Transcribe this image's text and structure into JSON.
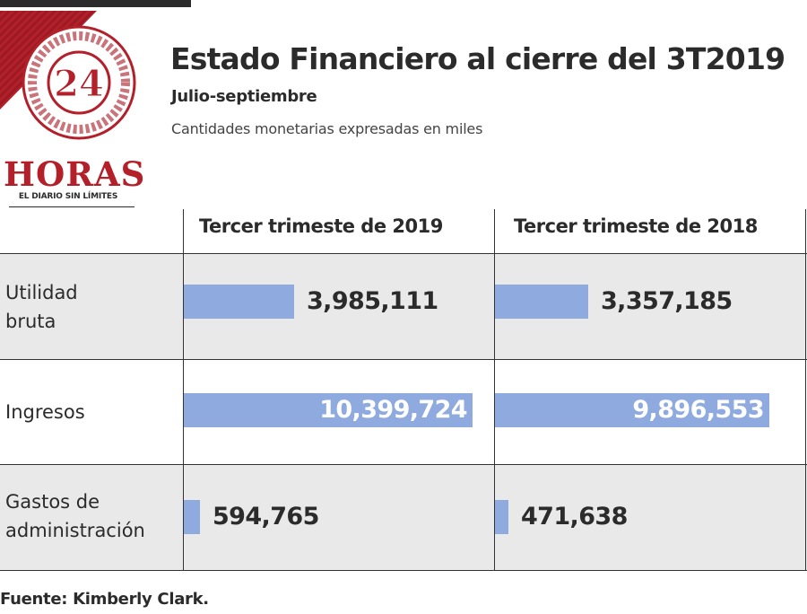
{
  "logo": {
    "number": "24",
    "wordmark": "HORAS",
    "tagline": "EL DIARIO SIN LÍMITES"
  },
  "header": {
    "title": "Estado Financiero al cierre del 3T2019",
    "subtitle": "Julio-septiembre",
    "note": "Cantidades monetarias expresadas en miles"
  },
  "chart_data": {
    "type": "bar",
    "title": "Estado Financiero al cierre del 3T2019",
    "subtitle": "Julio-septiembre",
    "unit_note": "Cantidades monetarias expresadas en miles",
    "categories": [
      "Utilidad bruta",
      "Ingresos",
      "Gastos de administración"
    ],
    "category_labels": [
      [
        "Utilidad",
        "bruta"
      ],
      [
        "Ingresos"
      ],
      [
        "Gastos de",
        "administración"
      ]
    ],
    "series": [
      {
        "name": "Tercer trimeste de 2019",
        "values": [
          3985111,
          10399724,
          594765
        ],
        "labels": [
          "3,985,111",
          "10,399,724",
          "594,765"
        ]
      },
      {
        "name": "Tercer trimeste de 2018",
        "values": [
          3357185,
          9896553,
          471638
        ],
        "labels": [
          "3,357,185",
          "9,896,553",
          "471,638"
        ]
      }
    ],
    "colors": {
      "bar": "#8eaadf",
      "row_background": "#e9e9e9"
    },
    "source": "Fuente: Kimberly Clark."
  }
}
